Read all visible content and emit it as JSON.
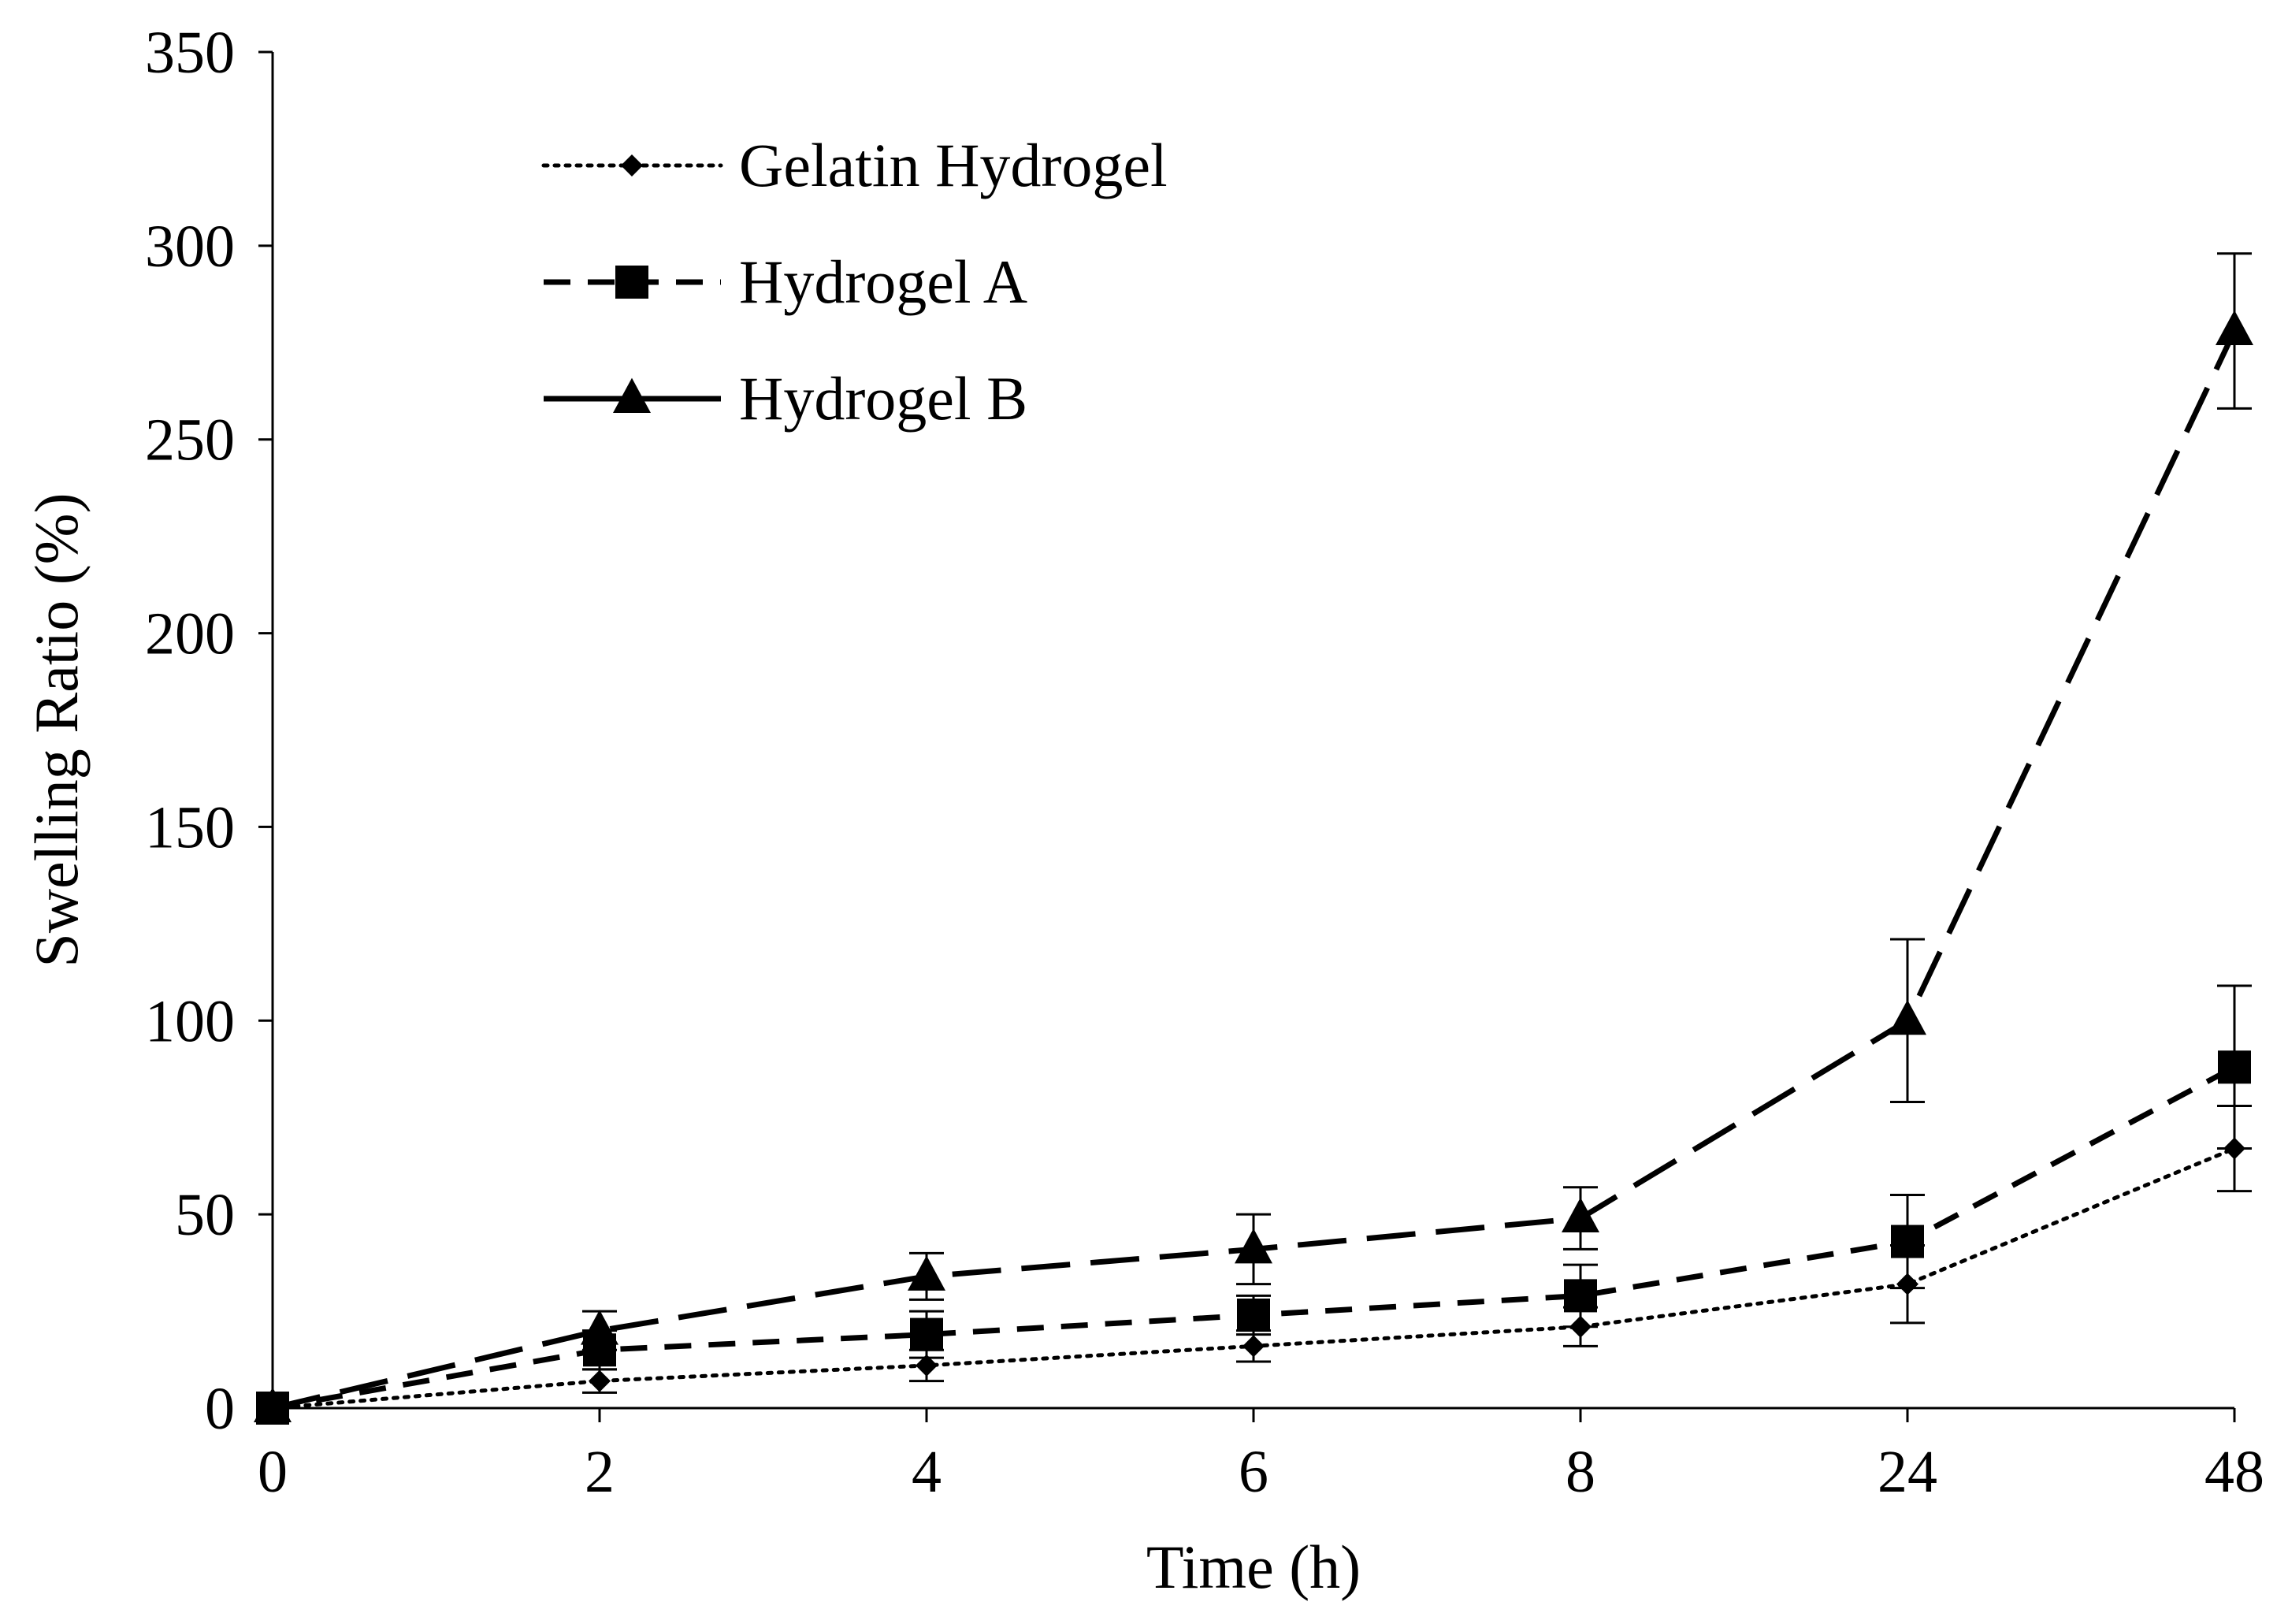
{
  "chart_data": {
    "type": "line",
    "title": "",
    "xlabel": "Time (h)",
    "ylabel": "Swelling Ratio (%)",
    "categories": [
      "0",
      "2",
      "4",
      "6",
      "8",
      "24",
      "48"
    ],
    "ylim": [
      0,
      350
    ],
    "yticks": [
      0,
      50,
      100,
      150,
      200,
      250,
      300,
      350
    ],
    "grid": false,
    "legend_position": "top-left",
    "series": [
      {
        "name": "Gelatin Hydrogel",
        "line_style": "dotted",
        "marker": "diamond",
        "values": [
          0,
          7,
          11,
          16,
          21,
          32,
          67
        ],
        "errors": [
          0,
          3,
          4,
          4,
          5,
          10,
          11
        ]
      },
      {
        "name": "Hydrogel A",
        "line_style": "dashed",
        "marker": "square",
        "values": [
          0,
          15,
          19,
          24,
          29,
          43,
          88
        ],
        "errors": [
          0,
          5,
          6,
          5,
          8,
          12,
          21
        ]
      },
      {
        "name": "Hydrogel B",
        "line_style": "long-dashed",
        "marker": "triangle",
        "values": [
          0,
          20,
          34,
          41,
          49,
          100,
          278
        ],
        "errors": [
          0,
          5,
          6,
          9,
          8,
          21,
          20
        ]
      }
    ]
  },
  "colors": {
    "ink": "#000000",
    "background": "#ffffff"
  }
}
